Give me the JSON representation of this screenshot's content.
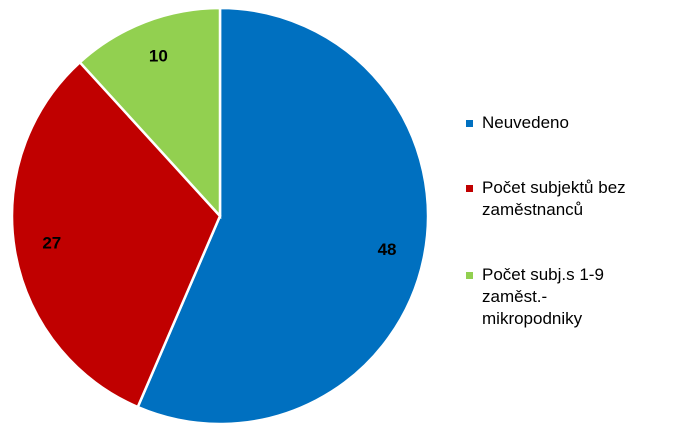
{
  "chart_data": {
    "type": "pie",
    "categories": [
      "Neuvedeno",
      "Počet subjektů bez zaměstnanců",
      "Počet subj.s 1-9 zaměst.-mikropodniky"
    ],
    "values": [
      48,
      27,
      10
    ],
    "colors": [
      "#0070c0",
      "#c00000",
      "#92d050"
    ]
  }
}
